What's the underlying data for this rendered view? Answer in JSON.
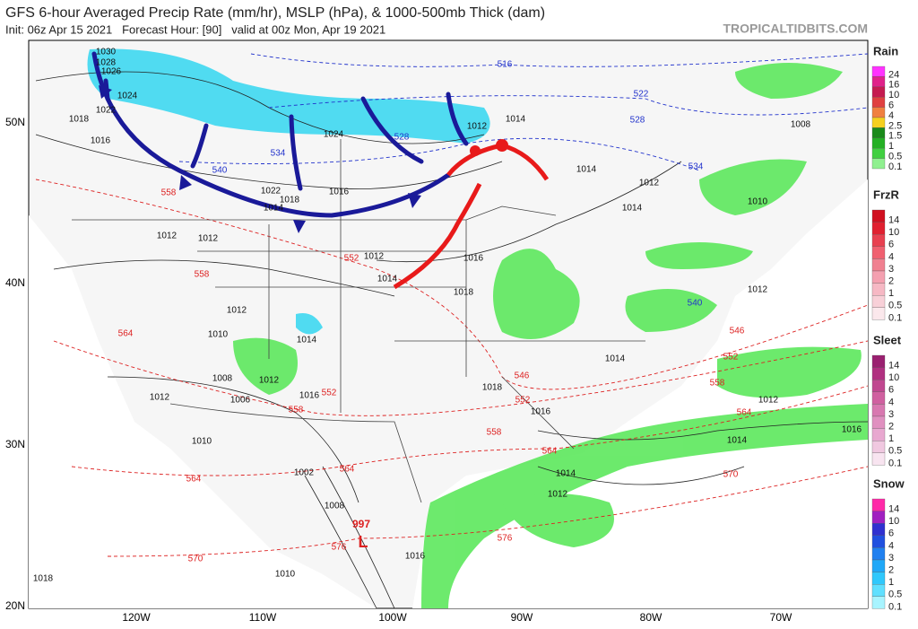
{
  "header": {
    "title": "GFS 6-hour Averaged Precip Rate (mm/hr), MSLP (hPa), & 1000-500mb Thick (dam)",
    "subtitle": "Init: 06z Apr 15 2021   Forecast Hour: [90]   valid at 00z Mon, Apr 19 2021",
    "watermark": "TROPICALTIDBITS.COM"
  },
  "map": {
    "latitude_labels": [
      "50N",
      "40N",
      "30N",
      "20N"
    ],
    "longitude_labels": [
      "120W",
      "110W",
      "100W",
      "90W",
      "80W",
      "70W"
    ],
    "pressure_labels": [
      "1030",
      "1028",
      "1026",
      "1024",
      "1022",
      "1018",
      "1016",
      "1024",
      "1012",
      "1014",
      "1008",
      "1014",
      "1012",
      "1014",
      "1010",
      "1016",
      "1018",
      "1014",
      "1022",
      "1012",
      "1012",
      "1012",
      "1014",
      "1016",
      "1018",
      "1012",
      "1012",
      "1010",
      "1014",
      "1008",
      "1012",
      "1016",
      "1012",
      "1006",
      "1018",
      "1016",
      "1014",
      "1012",
      "1016",
      "1014",
      "1010",
      "1002",
      "1014",
      "1012",
      "1008",
      "1010",
      "1016",
      "1018"
    ],
    "thickness_labels": [
      "516",
      "522",
      "528",
      "534",
      "540",
      "534",
      "528",
      "546",
      "552",
      "552",
      "558",
      "558",
      "558",
      "558",
      "564",
      "564",
      "564",
      "564",
      "546",
      "552",
      "552",
      "558",
      "570",
      "570",
      "576",
      "576",
      "540",
      "564"
    ],
    "low": {
      "pressure": "997",
      "symbol": "L"
    }
  },
  "legend": [
    {
      "title": "Rain",
      "labels": [
        "24",
        "16",
        "10",
        "6",
        "4",
        "2.5",
        "1.5",
        "1",
        "0.5",
        "0.1"
      ]
    },
    {
      "title": "FrzR",
      "labels": [
        "14",
        "10",
        "6",
        "4",
        "3",
        "2",
        "1",
        "0.5",
        "0.1"
      ]
    },
    {
      "title": "Sleet",
      "labels": [
        "14",
        "10",
        "6",
        "4",
        "3",
        "2",
        "1",
        "0.5",
        "0.1"
      ]
    },
    {
      "title": "Snow",
      "labels": [
        "14",
        "10",
        "6",
        "4",
        "3",
        "2",
        "1",
        "0.5",
        "0.1"
      ]
    }
  ]
}
